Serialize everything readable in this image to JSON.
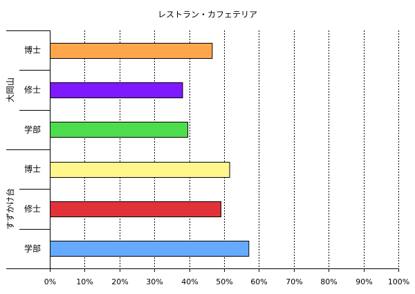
{
  "chart_data": {
    "type": "bar",
    "orientation": "horizontal",
    "title": "レストラン・カフェテリア",
    "xlabel": "",
    "ylabel": "",
    "xlim": [
      0,
      100
    ],
    "x_ticks": [
      "0%",
      "10%",
      "20%",
      "30%",
      "40%",
      "50%",
      "60%",
      "70%",
      "80%",
      "90%",
      "100%"
    ],
    "grid": "vertical-dashed",
    "legend": "none",
    "groups": [
      {
        "name": "大岡山",
        "bars": [
          {
            "label": "博士",
            "value": 46.5,
            "color": "#ffa64d"
          },
          {
            "label": "修士",
            "value": 38.0,
            "color": "#7f19ff"
          },
          {
            "label": "学部",
            "value": 39.5,
            "color": "#4ddc4d"
          }
        ]
      },
      {
        "name": "すずかけ台",
        "bars": [
          {
            "label": "博士",
            "value": 51.5,
            "color": "#fff68c"
          },
          {
            "label": "修士",
            "value": 49.0,
            "color": "#e13239"
          },
          {
            "label": "学部",
            "value": 57.0,
            "color": "#66aaff"
          }
        ]
      }
    ]
  }
}
